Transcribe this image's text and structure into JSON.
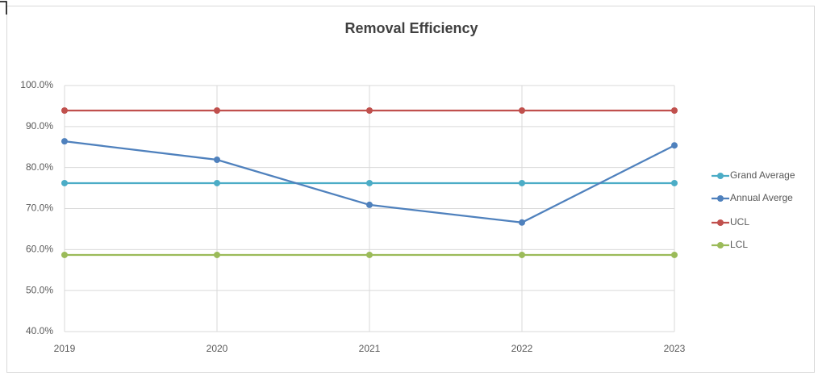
{
  "chart_data": {
    "type": "line",
    "title": "Removal Efficiency",
    "categories": [
      "2019",
      "2020",
      "2021",
      "2022",
      "2023"
    ],
    "series": [
      {
        "name": "Grand Average",
        "color": "#4bacc6",
        "values": [
          76.2,
          76.2,
          76.2,
          76.2,
          76.2
        ]
      },
      {
        "name": "Annual Averge",
        "color": "#4f81bd",
        "values": [
          86.4,
          81.9,
          70.9,
          66.6,
          85.4
        ]
      },
      {
        "name": "UCL",
        "color": "#c0504d",
        "values": [
          93.9,
          93.9,
          93.9,
          93.9,
          93.9
        ]
      },
      {
        "name": "LCL",
        "color": "#9bbb59",
        "values": [
          58.7,
          58.7,
          58.7,
          58.7,
          58.7
        ]
      }
    ],
    "ylim": [
      40,
      100
    ],
    "yticks": [
      {
        "value": 40,
        "label": "40.0%"
      },
      {
        "value": 50,
        "label": "50.0%"
      },
      {
        "value": 60,
        "label": "60.0%"
      },
      {
        "value": 70,
        "label": "70.0%"
      },
      {
        "value": 80,
        "label": "80.0%"
      },
      {
        "value": 90,
        "label": "90.0%"
      },
      {
        "value": 100,
        "label": "100.0%"
      }
    ],
    "grid": true,
    "legend": "right"
  }
}
